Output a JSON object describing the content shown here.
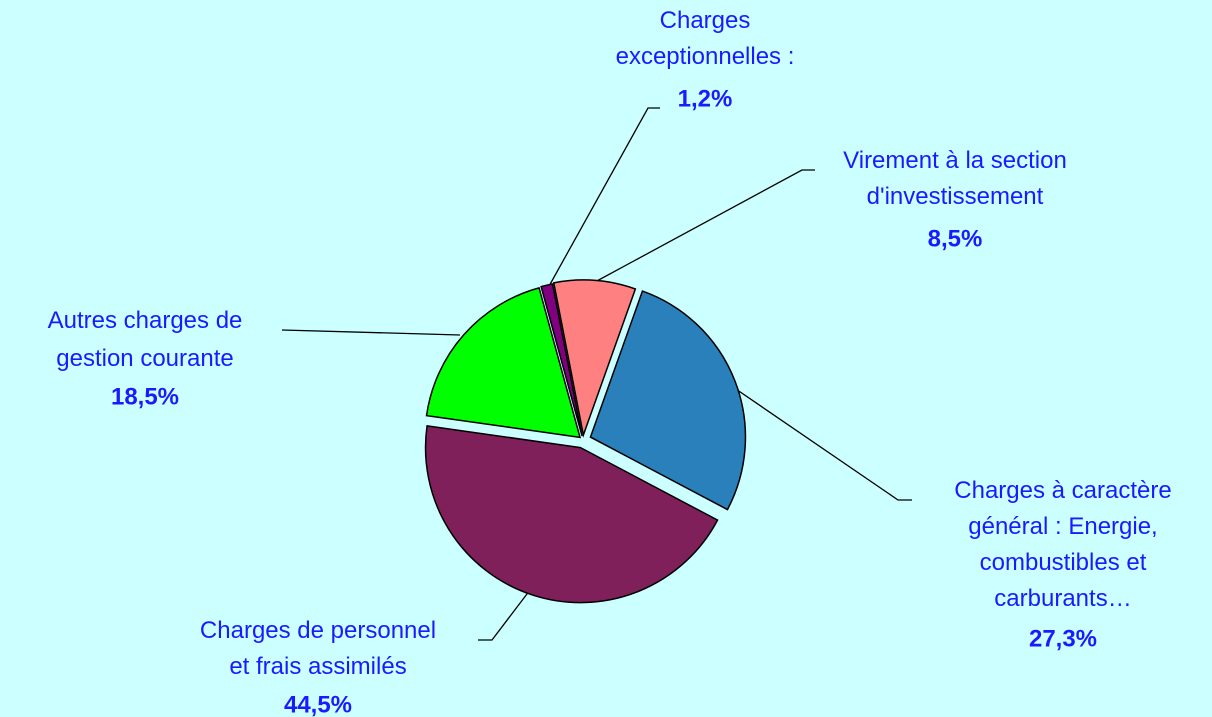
{
  "chart_data": {
    "type": "pie",
    "categories": [
      "Virement à la section\nd'investissement",
      "Charges à caractère\ngénéral : Energie,\ncombustibles et\ncarburants…",
      "Charges de personnel\net frais assimilés",
      "Autres charges de\ngestion courante",
      "Charges\nexceptionnelles :"
    ],
    "values": [
      8.5,
      27.3,
      44.5,
      18.5,
      1.2
    ],
    "value_labels": [
      "8,5%",
      "27,3%",
      "44,5%",
      "18,5%",
      "1,2%"
    ],
    "colors": [
      "#ff8080",
      "#2a80ba",
      "#80205a",
      "#00ff00",
      "#800080"
    ]
  }
}
